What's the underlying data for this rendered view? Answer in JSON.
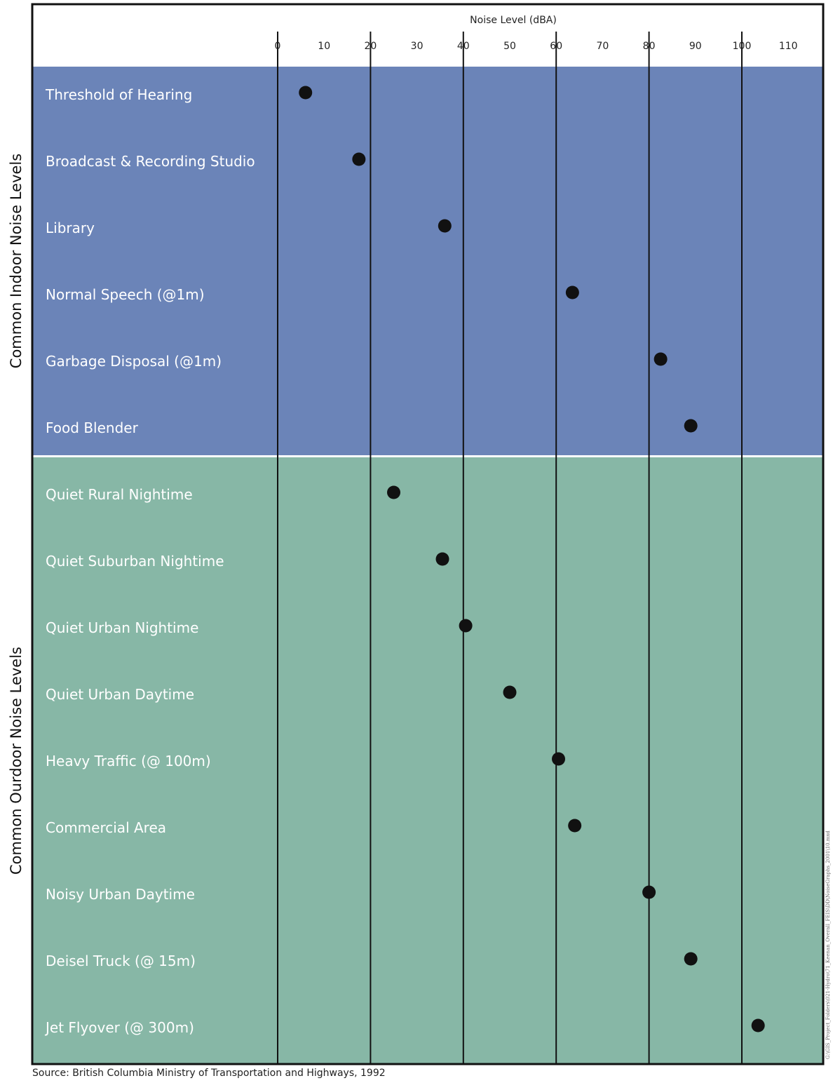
{
  "chart_data": {
    "type": "scatter",
    "title": "",
    "xlabel": "Noise Level (dBA)",
    "xlim": [
      0,
      110
    ],
    "xticks": [
      0,
      10,
      20,
      30,
      40,
      50,
      60,
      70,
      80,
      90,
      100,
      110
    ],
    "gridlines": [
      0,
      20,
      40,
      60,
      80,
      100
    ],
    "legend": "none",
    "groups": [
      {
        "name": "Common Indoor Noise Levels",
        "color": "#6b84b8",
        "items": [
          {
            "label": "Threshold of Hearing",
            "value": 6
          },
          {
            "label": "Broadcast & Recording Studio",
            "value": 17.5
          },
          {
            "label": "Library",
            "value": 36
          },
          {
            "label": "Normal Speech (@1m)",
            "value": 63.5
          },
          {
            "label": "Garbage Disposal (@1m)",
            "value": 82.5
          },
          {
            "label": "Food Blender",
            "value": 89
          }
        ]
      },
      {
        "name": "Common Ourdoor Noise Levels",
        "color": "#87b7a6",
        "items": [
          {
            "label": "Quiet Rural Nightime",
            "value": 25
          },
          {
            "label": "Quiet Suburban Nightime",
            "value": 35.5
          },
          {
            "label": "Quiet Urban Nightime",
            "value": 40.5
          },
          {
            "label": "Quiet Urban Daytime",
            "value": 50
          },
          {
            "label": "Heavy Traffic (@ 100m)",
            "value": 60.5
          },
          {
            "label": "Commercial Area",
            "value": 64
          },
          {
            "label": "Noisy Urban Daytime",
            "value": 80
          },
          {
            "label": "Deisel Truck (@ 15m)",
            "value": 89
          },
          {
            "label": "Jet Flyover (@ 300m)",
            "value": 103.5
          }
        ]
      }
    ]
  },
  "source": "Source: British Columbia Ministry of Transportation and Highways, 1992",
  "file_path": "G:\\GIS_Project_Folders\\021-Hydro\\71_Keenan_Overall_FEIS\\DD\\NoiseGraphs_2001\\10.mxd"
}
